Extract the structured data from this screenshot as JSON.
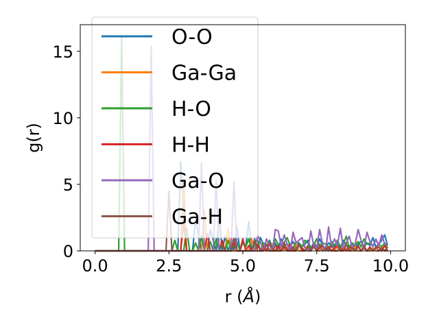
{
  "chart_data": {
    "type": "line",
    "xlabel": "r (Å)",
    "xlabel_parts": {
      "prefix": "r (",
      "symbol": "Å",
      "suffix": ")"
    },
    "ylabel": "g(r)",
    "xlim": [
      -0.5,
      10.5
    ],
    "ylim": [
      0,
      17
    ],
    "xticks": [
      0.0,
      2.5,
      5.0,
      7.5,
      10.0
    ],
    "xtick_labels": [
      "0.0",
      "2.5",
      "5.0",
      "7.5",
      "10.0"
    ],
    "yticks": [
      0,
      5,
      10,
      15
    ],
    "ytick_labels": [
      "0",
      "5",
      "10",
      "15"
    ],
    "grid": false,
    "legend_position": "upper-left",
    "x": [
      0.0,
      0.1,
      0.2,
      0.3,
      0.4,
      0.5,
      0.6,
      0.7,
      0.8,
      0.9,
      1.0,
      1.1,
      1.2,
      1.3,
      1.4,
      1.5,
      1.6,
      1.7,
      1.8,
      1.9,
      2.0,
      2.1,
      2.2,
      2.3,
      2.4,
      2.5,
      2.6,
      2.7,
      2.8,
      2.9,
      3.0,
      3.1,
      3.2,
      3.3,
      3.4,
      3.5,
      3.6,
      3.7,
      3.8,
      3.9,
      4.0,
      4.1,
      4.2,
      4.3,
      4.4,
      4.5,
      4.6,
      4.7,
      4.8,
      4.9,
      5.0,
      5.1,
      5.2,
      5.3,
      5.4,
      5.5,
      5.6,
      5.7,
      5.8,
      5.9,
      6.0,
      6.1,
      6.2,
      6.3,
      6.4,
      6.5,
      6.6,
      6.7,
      6.8,
      6.9,
      7.0,
      7.1,
      7.2,
      7.3,
      7.4,
      7.5,
      7.6,
      7.7,
      7.8,
      7.9,
      8.0,
      8.1,
      8.2,
      8.3,
      8.4,
      8.5,
      8.6,
      8.7,
      8.8,
      8.9,
      9.0,
      9.1,
      9.2,
      9.3,
      9.4,
      9.5,
      9.6,
      9.7,
      9.8,
      9.9
    ],
    "series": [
      {
        "name": "O-O",
        "color": "#1f77b4",
        "values": [
          0,
          0,
          0,
          0,
          0,
          0,
          0,
          0,
          0,
          0,
          0,
          0,
          0,
          0,
          0,
          0,
          0,
          0,
          0,
          0,
          0,
          0,
          0,
          0,
          0,
          0,
          0,
          0,
          0,
          6.7,
          3.2,
          0,
          0,
          0,
          2.4,
          1.2,
          0,
          0,
          0,
          1.6,
          0.8,
          0,
          2.7,
          0,
          1.1,
          0,
          0.6,
          0,
          1.8,
          0,
          0.7,
          0.3,
          2.2,
          0,
          0.9,
          0.2,
          1.0,
          0.4,
          0,
          0.8,
          0.3,
          0.6,
          0.2,
          0.9,
          0.4,
          0.5,
          0.3,
          0.7,
          0.2,
          0.6,
          0.3,
          0.5,
          0.8,
          0.2,
          0.6,
          0.3,
          0.9,
          0.4,
          0.2,
          0.6,
          0.5,
          0.3,
          0.7,
          0.2,
          0.8,
          0.4,
          0.3,
          0.6,
          0.2,
          0.5,
          0.7,
          0.3,
          0.6,
          0.4,
          1.0,
          0.3,
          0.5,
          0.8,
          1.2,
          0.4
        ]
      },
      {
        "name": "Ga-Ga",
        "color": "#ff7f0e",
        "values": [
          0,
          0,
          0,
          0,
          0,
          0,
          0,
          0,
          0,
          0,
          0,
          0,
          0,
          0,
          0,
          0,
          0,
          0,
          0,
          0,
          0,
          0,
          0,
          0,
          0,
          0,
          0,
          0,
          0,
          0,
          5.5,
          0,
          0,
          0,
          0,
          0,
          0,
          3.0,
          0,
          0,
          0,
          0,
          0,
          0,
          0,
          1.7,
          0,
          0,
          0,
          0,
          0,
          0,
          0,
          0.9,
          0,
          0,
          0,
          0.6,
          0,
          0,
          0.5,
          0,
          0,
          0.4,
          0,
          0.3,
          0,
          0,
          0.5,
          0,
          0,
          0.3,
          0,
          0,
          0.4,
          0,
          0,
          0.3,
          0,
          0.2,
          0,
          0,
          0.3,
          0,
          0,
          0.2,
          0,
          0,
          0.3,
          0,
          0,
          0.2,
          0,
          0,
          0.2,
          0,
          0,
          0.3,
          0,
          0
        ]
      },
      {
        "name": "H-O",
        "color": "#2ca02c",
        "values": [
          0,
          0,
          0,
          0,
          0,
          0,
          0,
          0,
          0,
          16.2,
          0,
          0,
          0,
          0,
          0,
          0,
          0,
          0,
          0,
          0,
          0,
          0,
          0,
          0,
          0,
          0,
          0,
          0.8,
          0,
          0,
          0,
          1.7,
          0,
          0,
          0.6,
          0,
          1.1,
          0,
          0,
          0.7,
          0,
          0.9,
          0,
          0.5,
          0,
          0.8,
          0,
          0.4,
          0.7,
          0,
          0.6,
          0.3,
          0.9,
          0,
          0.5,
          0.8,
          0,
          0.6,
          0.4,
          0.7,
          0.2,
          0.9,
          0.5,
          0.3,
          0.6,
          1.0,
          0.4,
          0.2,
          0.7,
          0.5,
          0.3,
          0.8,
          0.6,
          0.2,
          0.4,
          0.9,
          0.3,
          0.6,
          0.5,
          0.2,
          0.7,
          0.4,
          0.8,
          0.3,
          0.5,
          1.1,
          0.2,
          0.6,
          0.4,
          0.7,
          0.3,
          0.9,
          0.5,
          0.6,
          0.4,
          0.8,
          0.5,
          0.3,
          0.6,
          0.2
        ]
      },
      {
        "name": "H-H",
        "color": "#d62728",
        "values": [
          0,
          0,
          0,
          0,
          0,
          0,
          0,
          0,
          0,
          0,
          0,
          0,
          0,
          0,
          0,
          0,
          0,
          0,
          0,
          0,
          0,
          0,
          0,
          0,
          0,
          0,
          0,
          0,
          0,
          0,
          2.2,
          0,
          0,
          0,
          0,
          0,
          0,
          0,
          1.3,
          0,
          0,
          0,
          0,
          0.8,
          0,
          0,
          0,
          0.6,
          0,
          0,
          0.9,
          0,
          0.4,
          0,
          0,
          0.5,
          0,
          0.3,
          0,
          0.6,
          0,
          0,
          0.4,
          0,
          0.3,
          0,
          0.5,
          0,
          0,
          0.4,
          0.2,
          0,
          0.3,
          0,
          0.5,
          0,
          0.2,
          0.4,
          0,
          0.3,
          0,
          0.2,
          0.4,
          0,
          0.3,
          0,
          0.2,
          0.3,
          0,
          0.4,
          0,
          0.2,
          0,
          0.3,
          0,
          0.2,
          0.3,
          0,
          0.4,
          0
        ]
      },
      {
        "name": "Ga-O",
        "color": "#9467bd",
        "values": [
          0,
          0,
          0,
          0,
          0,
          0,
          0,
          0,
          0,
          0,
          0,
          0,
          0,
          0,
          0,
          0,
          0,
          0,
          0,
          15.4,
          0,
          0,
          0,
          0,
          0,
          0,
          0,
          0,
          0,
          0,
          0,
          0,
          0,
          0,
          0,
          0,
          6.6,
          0,
          0,
          0,
          0,
          5.3,
          0,
          0,
          0,
          0,
          0,
          5.2,
          0,
          0,
          0,
          0,
          0,
          0,
          0,
          1.2,
          0.6,
          0,
          0.9,
          0.4,
          0,
          1.6,
          1.5,
          0.3,
          1.2,
          0.5,
          0,
          1.4,
          0.6,
          0.8,
          1.0,
          0.3,
          0,
          1.5,
          0.4,
          0.2,
          1.6,
          0.5,
          0,
          1.8,
          0.3,
          0.9,
          0.4,
          1.7,
          0.2,
          0.6,
          1.1,
          0.3,
          0.5,
          1.6,
          0.8,
          0.2,
          1.4,
          0.7,
          0.3,
          0.9,
          0.4,
          1.2,
          0.5,
          0.6
        ]
      },
      {
        "name": "Ga-H",
        "color": "#8c564b",
        "values": [
          0,
          0,
          0,
          0,
          0,
          0,
          0,
          0,
          0,
          0,
          0,
          0,
          0,
          0,
          0,
          0,
          0,
          0,
          0,
          0,
          0,
          0,
          0,
          0,
          0,
          4.5,
          0,
          0,
          0,
          0,
          0,
          0,
          0,
          0,
          0,
          0,
          0,
          0,
          0,
          0,
          0,
          0,
          0,
          0,
          0,
          0,
          0,
          1.0,
          0,
          0,
          0,
          0,
          0,
          0,
          0.8,
          0,
          0,
          0,
          0.5,
          0,
          0,
          0.4,
          0,
          0,
          0.6,
          0,
          0,
          0.3,
          0,
          0.5,
          0,
          0,
          0.4,
          0,
          0.3,
          0,
          0.5,
          0,
          0.2,
          0,
          0.4,
          0,
          0,
          0.3,
          0,
          0.5,
          0,
          0.2,
          0,
          0.3,
          0,
          0.4,
          0,
          0.2,
          0,
          0.3,
          0,
          0.2,
          0,
          0.3
        ]
      }
    ]
  }
}
